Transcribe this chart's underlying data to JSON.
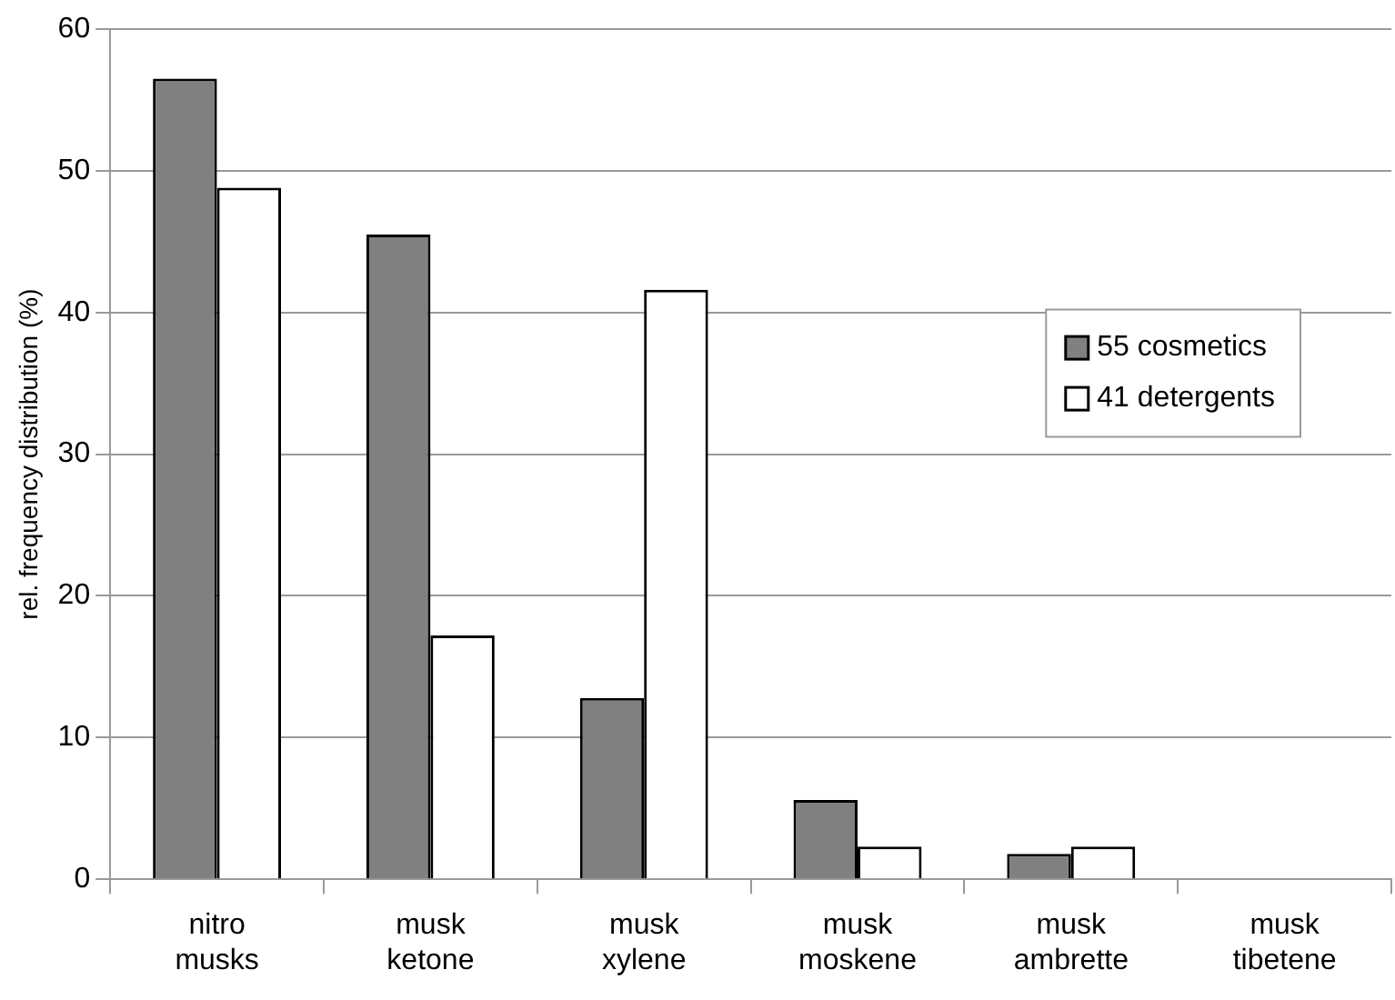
{
  "chart_data": {
    "type": "bar",
    "ylabel": "rel. frequency distribution (%)",
    "categories": [
      "nitro musks",
      "musk ketone",
      "musk xylene",
      "musk moskene",
      "musk ambrette",
      "musk tibetene"
    ],
    "series": [
      {
        "name": "55 cosmetics",
        "color": "#808080",
        "values": [
          56.5,
          45.5,
          12.8,
          5.6,
          1.8,
          0
        ]
      },
      {
        "name": "41 detergents",
        "color": "#ffffff",
        "values": [
          48.8,
          17.2,
          41.6,
          2.3,
          2.3,
          0
        ]
      }
    ],
    "ylim": [
      0,
      60
    ],
    "yticks": [
      0,
      10,
      20,
      30,
      40,
      50,
      60
    ],
    "grid": "y",
    "legend": "right"
  }
}
